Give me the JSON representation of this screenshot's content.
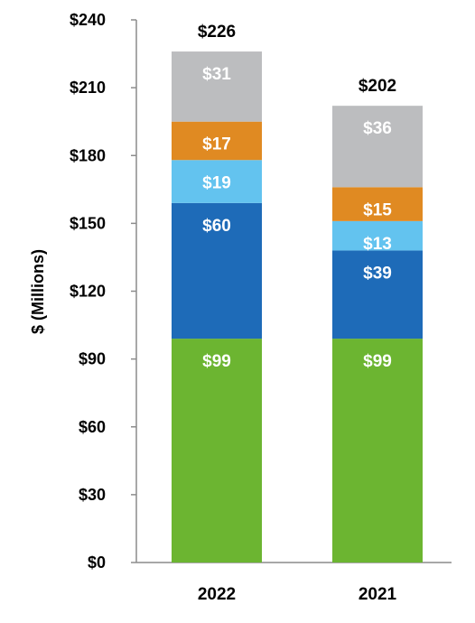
{
  "chart_data": {
    "type": "bar",
    "stacked": true,
    "categories": [
      "2022",
      "2021"
    ],
    "series": [
      {
        "values": [
          99,
          99
        ],
        "labels": [
          "$99",
          "$99"
        ],
        "color": "#6cb531"
      },
      {
        "values": [
          60,
          39
        ],
        "labels": [
          "$60",
          "$39"
        ],
        "color": "#1e6bb8"
      },
      {
        "values": [
          19,
          13
        ],
        "labels": [
          "$19",
          "$13"
        ],
        "color": "#63c3ef"
      },
      {
        "values": [
          17,
          15
        ],
        "labels": [
          "$17",
          "$15"
        ],
        "color": "#e08a22"
      },
      {
        "values": [
          31,
          36
        ],
        "labels": [
          "$31",
          "$36"
        ],
        "color": "#bcbdbf"
      }
    ],
    "totals": [
      226,
      202
    ],
    "total_labels": [
      "$226",
      "$202"
    ],
    "ylabel": "$ (Millions)",
    "ylim": [
      0,
      240
    ],
    "yticks": [
      0,
      30,
      60,
      90,
      120,
      150,
      180,
      210,
      240
    ],
    "ytick_labels": [
      "$0",
      "$30",
      "$60",
      "$90",
      "$120",
      "$150",
      "$180",
      "$210",
      "$240"
    ],
    "grid": false,
    "legend": "none"
  }
}
